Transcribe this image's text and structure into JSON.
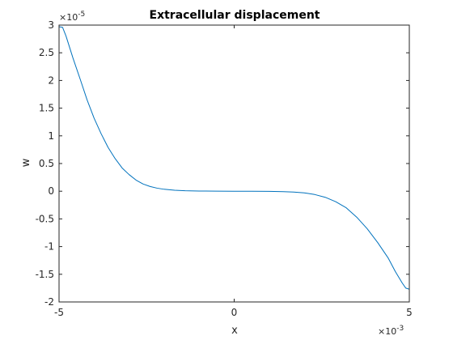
{
  "chart_data": {
    "type": "line",
    "title": "Extracellular displacement",
    "xlabel": "x",
    "ylabel": "w",
    "x_multiplier_label": "×10",
    "x_multiplier_exponent": "-3",
    "y_multiplier_label": "×10",
    "y_multiplier_exponent": "-5",
    "xlim": [
      -0.005,
      0.005
    ],
    "ylim": [
      -2e-05,
      3e-05
    ],
    "x_tick_labels": [
      "-5",
      "0",
      "5"
    ],
    "y_tick_labels": [
      "3",
      "2.5",
      "2",
      "1.5",
      "1",
      "0.5",
      "0",
      "-0.5",
      "-1",
      "-1.5",
      "-2"
    ],
    "grid": false,
    "box": true,
    "series": [
      {
        "color": "#0072bd",
        "points": [
          [
            -0.005,
            2.97e-05
          ],
          [
            -0.0049,
            2.96e-05
          ],
          [
            -0.0048,
            2.8e-05
          ],
          [
            -0.0046,
            2.4e-05
          ],
          [
            -0.0044,
            2.03e-05
          ],
          [
            -0.0042,
            1.65e-05
          ],
          [
            -0.004,
            1.32e-05
          ],
          [
            -0.0038,
            1.04e-05
          ],
          [
            -0.0036,
            7.9e-06
          ],
          [
            -0.0034,
            5.9e-06
          ],
          [
            -0.0032,
            4.2e-06
          ],
          [
            -0.003,
            3e-06
          ],
          [
            -0.0028,
            2e-06
          ],
          [
            -0.0026,
            1.3e-06
          ],
          [
            -0.0024,
            8.5e-07
          ],
          [
            -0.0022,
            5.5e-07
          ],
          [
            -0.002,
            3.5e-07
          ],
          [
            -0.0017,
            1.8e-07
          ],
          [
            -0.0014,
            8e-08
          ],
          [
            -0.001,
            3e-08
          ],
          [
            -0.0005,
            1e-08
          ],
          [
            0.0,
            0.0
          ],
          [
            0.0005,
            -1e-08
          ],
          [
            0.001,
            -3e-08
          ],
          [
            0.0014,
            -8e-08
          ],
          [
            0.0017,
            -1.5e-07
          ],
          [
            0.002,
            -3e-07
          ],
          [
            0.0023,
            -6e-07
          ],
          [
            0.0026,
            -1.1e-06
          ],
          [
            0.0029,
            -1.9e-06
          ],
          [
            0.0032,
            -3e-06
          ],
          [
            0.0035,
            -4.7e-06
          ],
          [
            0.0038,
            -6.8e-06
          ],
          [
            0.0041,
            -9.3e-06
          ],
          [
            0.0044,
            -1.21e-05
          ],
          [
            0.0046,
            -1.45e-05
          ],
          [
            0.0048,
            -1.66e-05
          ],
          [
            0.0049,
            -1.75e-05
          ],
          [
            0.005,
            -1.77e-05
          ]
        ]
      }
    ]
  }
}
